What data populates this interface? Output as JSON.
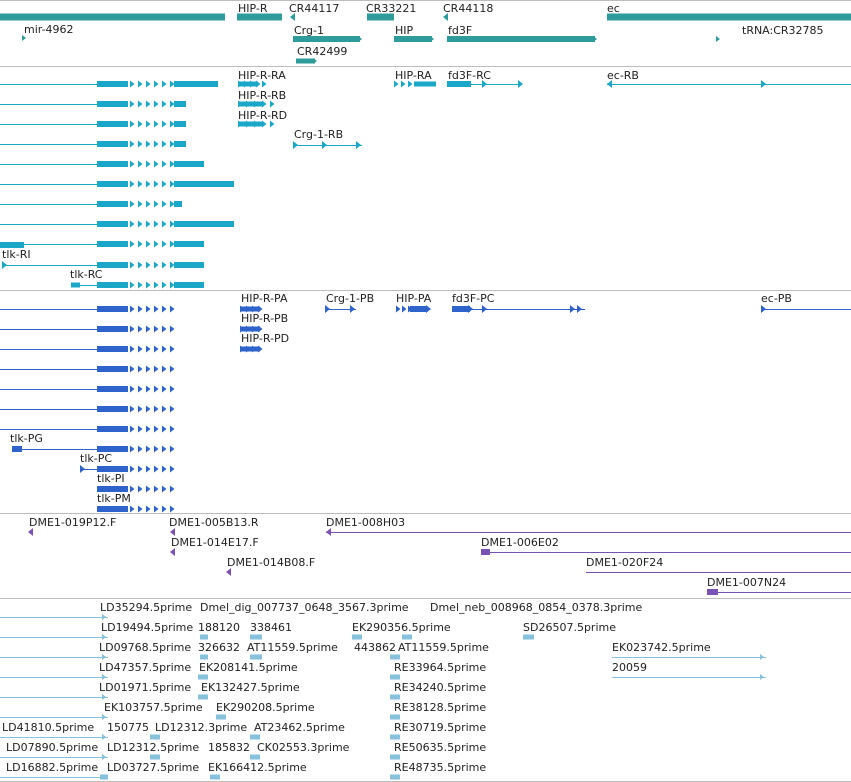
{
  "colors": {
    "background": "#ffffff",
    "separator": "#bdbdbd",
    "gene": "#2e9c9c",
    "transcript_rna": "#1ba7c7",
    "transcript_protein": "#2f63cc",
    "clone": "#7a52b5",
    "est": "#86c1dd",
    "text": "#222222"
  },
  "tracks": {
    "genes": {
      "items": [
        {
          "label": "mir-4962",
          "color": "gene"
        },
        {
          "label": "HIP-R",
          "color": "gene"
        },
        {
          "label": "CR44117",
          "color": "gene"
        },
        {
          "label": "CR33221",
          "color": "gene"
        },
        {
          "label": "CR44118",
          "color": "gene"
        },
        {
          "label": "ec",
          "color": "gene"
        },
        {
          "label": "Crg-1",
          "color": "gene"
        },
        {
          "label": "HIP",
          "color": "gene"
        },
        {
          "label": "fd3F",
          "color": "gene"
        },
        {
          "label": "tRNA:CR32785",
          "color": "gene"
        },
        {
          "label": "CR42499",
          "color": "gene"
        }
      ]
    },
    "transcripts": {
      "items": [
        {
          "label": "HIP-R-RA",
          "color": "transcript_rna"
        },
        {
          "label": "HIP-RA",
          "color": "transcript_rna"
        },
        {
          "label": "fd3F-RC",
          "color": "transcript_rna"
        },
        {
          "label": "ec-RB",
          "color": "transcript_rna"
        },
        {
          "label": "HIP-R-RB",
          "color": "transcript_rna"
        },
        {
          "label": "HIP-R-RD",
          "color": "transcript_rna"
        },
        {
          "label": "Crg-1-RB",
          "color": "transcript_rna"
        },
        {
          "label": "",
          "color": "transcript_rna"
        },
        {
          "label": "",
          "color": "transcript_rna"
        },
        {
          "label": "",
          "color": "transcript_rna"
        },
        {
          "label": "",
          "color": "transcript_rna"
        },
        {
          "label": "",
          "color": "transcript_rna"
        },
        {
          "label": "",
          "color": "transcript_rna"
        },
        {
          "label": "",
          "color": "transcript_rna"
        },
        {
          "label": "",
          "color": "transcript_rna"
        },
        {
          "label": "tlk-RI",
          "color": "transcript_rna"
        },
        {
          "label": "tlk-RC",
          "color": "transcript_rna"
        }
      ]
    },
    "proteins": {
      "items": [
        {
          "label": "HIP-R-PA",
          "color": "transcript_protein"
        },
        {
          "label": "Crg-1-PB",
          "color": "transcript_protein"
        },
        {
          "label": "HIP-PA",
          "color": "transcript_protein"
        },
        {
          "label": "fd3F-PC",
          "color": "transcript_protein"
        },
        {
          "label": "ec-PB",
          "color": "transcript_protein"
        },
        {
          "label": "HIP-R-PB",
          "color": "transcript_protein"
        },
        {
          "label": "HIP-R-PD",
          "color": "transcript_protein"
        },
        {
          "label": "",
          "color": "transcript_protein"
        },
        {
          "label": "",
          "color": "transcript_protein"
        },
        {
          "label": "",
          "color": "transcript_protein"
        },
        {
          "label": "",
          "color": "transcript_protein"
        },
        {
          "label": "",
          "color": "transcript_protein"
        },
        {
          "label": "tlk-PG",
          "color": "transcript_protein"
        },
        {
          "label": "tlk-PC",
          "color": "transcript_protein"
        },
        {
          "label": "tlk-PI",
          "color": "transcript_protein"
        },
        {
          "label": "tlk-PM",
          "color": "transcript_protein"
        }
      ]
    },
    "clones": {
      "items": [
        {
          "label": "DME1-019P12.F",
          "color": "clone"
        },
        {
          "label": "DME1-005B13.R",
          "color": "clone"
        },
        {
          "label": "DME1-008H03",
          "color": "clone"
        },
        {
          "label": "DME1-014E17.F",
          "color": "clone"
        },
        {
          "label": "DME1-006E02",
          "color": "clone"
        },
        {
          "label": "DME1-014B08.F",
          "color": "clone"
        },
        {
          "label": "DME1-020F24",
          "color": "clone"
        },
        {
          "label": "DME1-007N24",
          "color": "clone"
        }
      ]
    },
    "ests": {
      "items": [
        {
          "label": "LD35294.5prime",
          "color": "est"
        },
        {
          "label": "Dmel_dig_007737_0648_3567.3prime",
          "color": "est"
        },
        {
          "label": "Dmel_neb_008968_0854_0378.3prime",
          "color": "est"
        },
        {
          "label": "LD19494.5prime",
          "color": "est"
        },
        {
          "label": "188120",
          "color": "est"
        },
        {
          "label": "338461",
          "color": "est"
        },
        {
          "label": "EK290356.5prime",
          "color": "est"
        },
        {
          "label": "SD26507.5prime",
          "color": "est"
        },
        {
          "label": "LD09768.5prime",
          "color": "est"
        },
        {
          "label": "326632",
          "color": "est"
        },
        {
          "label": "AT11559.5prime",
          "color": "est"
        },
        {
          "label": "443862",
          "color": "est"
        },
        {
          "label": "AT11559.5prime",
          "color": "est"
        },
        {
          "label": "EK023742.5prime",
          "color": "est"
        },
        {
          "label": "LD47357.5prime",
          "color": "est"
        },
        {
          "label": "EK208141.5prime",
          "color": "est"
        },
        {
          "label": "RE33964.5prime",
          "color": "est"
        },
        {
          "label": "20059",
          "color": "est"
        },
        {
          "label": "LD01971.5prime",
          "color": "est"
        },
        {
          "label": "EK132427.5prime",
          "color": "est"
        },
        {
          "label": "RE34240.5prime",
          "color": "est"
        },
        {
          "label": "EK103757.5prime",
          "color": "est"
        },
        {
          "label": "EK290208.5prime",
          "color": "est"
        },
        {
          "label": "RE38128.5prime",
          "color": "est"
        },
        {
          "label": "LD41810.5prime",
          "color": "est"
        },
        {
          "label": "150775",
          "color": "est"
        },
        {
          "label": "LD12312.3prime",
          "color": "est"
        },
        {
          "label": "AT23462.5prime",
          "color": "est"
        },
        {
          "label": "RE30719.5prime",
          "color": "est"
        },
        {
          "label": "LD07890.5prime",
          "color": "est"
        },
        {
          "label": "LD12312.5prime",
          "color": "est"
        },
        {
          "label": "185832",
          "color": "est"
        },
        {
          "label": "CK02553.3prime",
          "color": "est"
        },
        {
          "label": "RE50635.5prime",
          "color": "est"
        },
        {
          "label": "LD16882.5prime",
          "color": "est"
        },
        {
          "label": "LD03727.5prime",
          "color": "est"
        },
        {
          "label": "EK166412.5prime",
          "color": "est"
        },
        {
          "label": "RE48735.5prime",
          "color": "est"
        }
      ]
    }
  }
}
